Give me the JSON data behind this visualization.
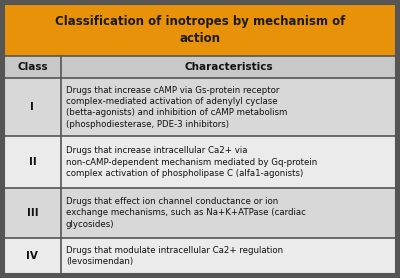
{
  "title": "Classification of inotropes by mechanism of\naction",
  "title_bg": "#E8920A",
  "title_color": "#1a1a1a",
  "header_bg": "#c8c8c8",
  "row_bg_odd": "#d8d8d8",
  "row_bg_even": "#ebebeb",
  "outer_bg": "#555555",
  "border_color": "#333333",
  "line_color": "#555555",
  "col_headers": [
    "Class",
    "Characteristics"
  ],
  "col_split": 0.145,
  "rows": [
    {
      "class": "I",
      "text": "Drugs that increase cAMP via Gs-protein receptor\ncomplex-mediated activation of adenylyl cyclase\n(betta-agonists) and inhibition of cAMP metabolism\n(phosphodiesterase, PDE-3 inhibitors)"
    },
    {
      "class": "II",
      "text": "Drugs that increase intracellular Ca2+ via\nnon-cAMP-dependent mechanism mediated by Gq-protein\ncomplex activation of phospholipase C (alfa1-agonists)"
    },
    {
      "class": "III",
      "text": "Drugs that effect ion channel conductance or ion\nexchange mechanisms, such as Na+K+ATPase (cardiac\nglycosides)"
    },
    {
      "class": "IV",
      "text": "Drugs that modulate intracellular Ca2+ regulation\n(levosimendan)"
    }
  ],
  "text_color": "#111111",
  "figsize": [
    4.0,
    2.78
  ],
  "dpi": 100
}
